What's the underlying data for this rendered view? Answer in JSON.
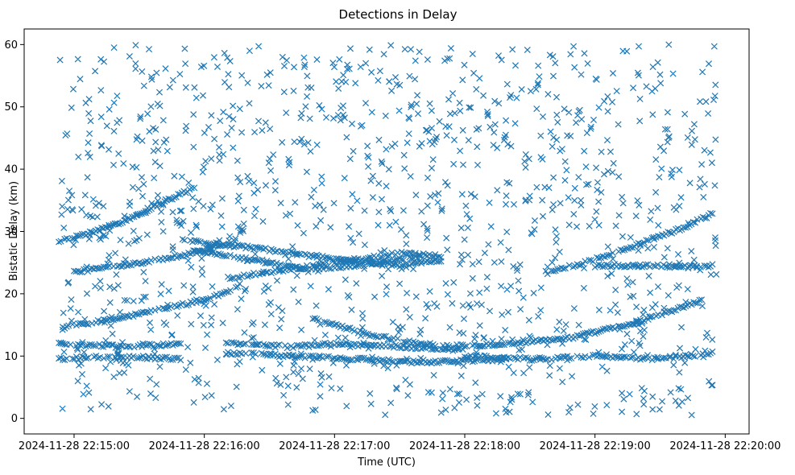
{
  "chart_data": {
    "type": "scatter",
    "title": "Detections in Delay",
    "xlabel": "Time (UTC)",
    "ylabel": "Bistatic Delay (km)",
    "x_start": "2024-11-28 22:14:53",
    "x_end": "2024-11-28 22:19:56",
    "xlim": [
      "2024-11-28 22:14:37",
      "2024-11-28 22:20:11"
    ],
    "ylim": [
      -2.5,
      62.5
    ],
    "xticks": [
      "2024-11-28 22:15:00",
      "2024-11-28 22:16:00",
      "2024-11-28 22:17:00",
      "2024-11-28 22:18:00",
      "2024-11-28 22:19:00",
      "2024-11-28 22:20:00"
    ],
    "yticks": [
      0,
      10,
      20,
      30,
      40,
      50,
      60
    ],
    "marker": "x",
    "color": "#1f77b4",
    "grid": false,
    "tracks": [
      {
        "points": [
          [
            "22:14:53",
            14.5
          ],
          [
            "22:15:20",
            16.0
          ],
          [
            "22:15:40",
            17.5
          ],
          [
            "22:16:00",
            19.0
          ],
          [
            "22:16:12",
            20.5
          ],
          [
            "22:16:18",
            22.0
          ]
        ]
      },
      {
        "points": [
          [
            "22:14:53",
            28.5
          ],
          [
            "22:15:10",
            30.0
          ],
          [
            "22:15:25",
            32.0
          ],
          [
            "22:15:40",
            34.5
          ],
          [
            "22:15:55",
            37.0
          ]
        ]
      },
      {
        "points": [
          [
            "22:15:00",
            23.5
          ],
          [
            "22:15:20",
            24.5
          ],
          [
            "22:15:40",
            25.5
          ],
          [
            "22:16:00",
            27.0
          ],
          [
            "22:16:15",
            28.5
          ]
        ]
      },
      {
        "points": [
          [
            "22:15:50",
            28.5
          ],
          [
            "22:16:20",
            27.5
          ],
          [
            "22:16:50",
            26.0
          ],
          [
            "22:17:30",
            24.5
          ],
          [
            "22:17:50",
            25.5
          ]
        ]
      },
      {
        "points": [
          [
            "22:15:55",
            27.0
          ],
          [
            "22:16:20",
            25.5
          ],
          [
            "22:16:45",
            24.0
          ],
          [
            "22:17:10",
            24.5
          ],
          [
            "22:17:40",
            26.0
          ]
        ]
      },
      {
        "points": [
          [
            "22:16:10",
            22.5
          ],
          [
            "22:16:40",
            24.0
          ],
          [
            "22:17:00",
            25.0
          ],
          [
            "22:17:30",
            26.5
          ],
          [
            "22:17:50",
            26.0
          ]
        ]
      },
      {
        "points": [
          [
            "22:16:10",
            12.0
          ],
          [
            "22:16:40",
            11.5
          ],
          [
            "22:17:00",
            12.0
          ],
          [
            "22:17:30",
            11.5
          ],
          [
            "22:18:00",
            11.0
          ]
        ]
      },
      {
        "points": [
          [
            "22:16:10",
            10.5
          ],
          [
            "22:16:40",
            10.0
          ],
          [
            "22:17:10",
            9.5
          ],
          [
            "22:17:40",
            9.0
          ],
          [
            "22:18:20",
            9.5
          ]
        ]
      },
      {
        "points": [
          [
            "22:16:50",
            16.0
          ],
          [
            "22:17:10",
            14.0
          ],
          [
            "22:17:30",
            12.5
          ],
          [
            "22:17:50",
            11.5
          ],
          [
            "22:18:20",
            12.0
          ],
          [
            "22:18:50",
            13.0
          ],
          [
            "22:19:20",
            15.5
          ],
          [
            "22:19:50",
            19.0
          ]
        ]
      },
      {
        "points": [
          [
            "22:18:00",
            10.0
          ],
          [
            "22:18:30",
            9.5
          ],
          [
            "22:19:00",
            10.0
          ],
          [
            "22:19:30",
            9.5
          ],
          [
            "22:19:55",
            10.5
          ]
        ]
      },
      {
        "points": [
          [
            "22:18:40",
            23.5
          ],
          [
            "22:19:00",
            25.5
          ],
          [
            "22:19:20",
            28.0
          ],
          [
            "22:19:40",
            30.5
          ],
          [
            "22:19:55",
            33.0
          ]
        ]
      },
      {
        "points": [
          [
            "22:19:00",
            24.5
          ],
          [
            "22:19:55",
            24.5
          ]
        ]
      },
      {
        "points": [
          [
            "22:14:53",
            12.0
          ],
          [
            "22:15:25",
            11.5
          ],
          [
            "22:15:50",
            12.0
          ]
        ]
      },
      {
        "points": [
          [
            "22:14:53",
            9.5
          ],
          [
            "22:15:20",
            10.0
          ],
          [
            "22:15:50",
            9.5
          ]
        ]
      }
    ],
    "noise_count": 1250
  }
}
